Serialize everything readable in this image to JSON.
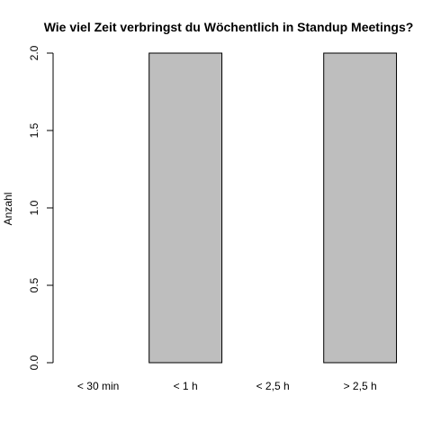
{
  "chart_data": {
    "type": "bar",
    "title": "Wie viel Zeit verbringst du Wöchentlich in Standup Meetings?",
    "xlabel": "",
    "ylabel": "Anzahl",
    "categories": [
      "< 30 min",
      "< 1 h",
      "< 2,5 h",
      "> 2,5 h"
    ],
    "values": [
      0,
      2,
      0,
      2
    ],
    "ylim": [
      0,
      2
    ],
    "yticks": [
      "0.0",
      "0.5",
      "1.0",
      "1.5",
      "2.0"
    ],
    "grid": false,
    "legend": "none",
    "colors": {
      "bar_fill": "#bebebe",
      "bar_stroke": "#000000"
    }
  }
}
